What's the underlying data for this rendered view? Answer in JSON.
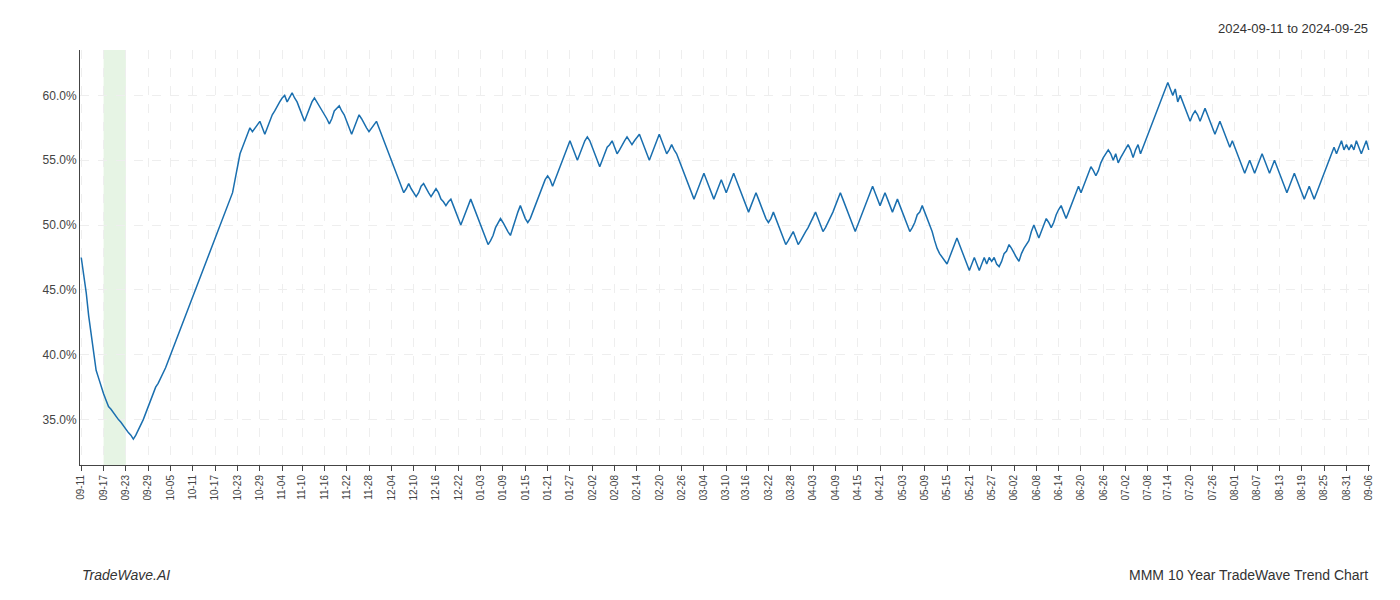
{
  "chart_data": {
    "type": "line",
    "annotations": [
      "2024-09-11 to 2024-09-25",
      "TradeWave.AI",
      "MMM 10 Year TradeWave Trend Chart"
    ],
    "color": "#1a6faf",
    "grid": true,
    "highlight": {
      "from": "09-17",
      "to": "09-23",
      "color": "#d6ecd2"
    },
    "ylim": [
      31.5,
      63.5
    ],
    "yticks": [
      {
        "value": 35.0,
        "label": "35.0%"
      },
      {
        "value": 40.0,
        "label": "40.0%"
      },
      {
        "value": 45.0,
        "label": "45.0%"
      },
      {
        "value": 50.0,
        "label": "50.0%"
      },
      {
        "value": 55.0,
        "label": "55.0%"
      },
      {
        "value": 60.0,
        "label": "60.0%"
      }
    ],
    "categories": [
      "09-11",
      null,
      null,
      null,
      null,
      null,
      null,
      null,
      null,
      "09-17",
      null,
      null,
      null,
      null,
      null,
      null,
      null,
      null,
      "09-23",
      null,
      null,
      null,
      null,
      null,
      null,
      null,
      null,
      "09-29",
      null,
      null,
      null,
      null,
      null,
      null,
      null,
      null,
      "10-05",
      null,
      null,
      null,
      null,
      null,
      null,
      null,
      null,
      "10-11",
      null,
      null,
      null,
      null,
      null,
      null,
      null,
      null,
      "10-17",
      null,
      null,
      null,
      null,
      null,
      null,
      null,
      null,
      "10-23",
      null,
      null,
      null,
      null,
      null,
      null,
      null,
      null,
      "10-29",
      null,
      null,
      null,
      null,
      null,
      null,
      null,
      null,
      "11-04",
      null,
      null,
      null,
      null,
      null,
      null,
      null,
      "11-10",
      null,
      null,
      null,
      null,
      null,
      null,
      null,
      null,
      "11-16",
      null,
      null,
      null,
      null,
      null,
      null,
      null,
      null,
      "11-22",
      null,
      null,
      null,
      null,
      null,
      null,
      null,
      null,
      "11-28",
      null,
      null,
      null,
      null,
      null,
      null,
      null,
      null,
      "12-04",
      null,
      null,
      null,
      null,
      null,
      null,
      null,
      null,
      "12-10",
      null,
      null,
      null,
      null,
      null,
      null,
      null,
      null,
      "12-16",
      null,
      null,
      null,
      null,
      null,
      null,
      null,
      null,
      "12-22",
      null,
      null,
      null,
      null,
      null,
      null,
      null,
      null,
      "01-03",
      null,
      null,
      null,
      null,
      null,
      null,
      null,
      null,
      "01-09",
      null,
      null,
      null,
      null,
      null,
      null,
      null,
      null,
      "01-15",
      null,
      null,
      null,
      null,
      null,
      null,
      null,
      null,
      "01-21",
      null,
      null,
      null,
      null,
      null,
      null,
      null,
      null,
      "01-27",
      null,
      null,
      null,
      null,
      null,
      null,
      null,
      null,
      "02-02",
      null,
      null,
      null,
      null,
      null,
      null,
      null,
      null,
      "02-08",
      null,
      null,
      null,
      null,
      null,
      null,
      null,
      null,
      "02-14",
      null,
      null,
      null,
      null,
      null,
      null,
      null,
      null,
      "02-20",
      null,
      null,
      null,
      null,
      null,
      null,
      null,
      null,
      "02-26",
      null,
      null,
      null,
      null,
      null,
      null,
      null,
      null,
      "03-04",
      null,
      null,
      null,
      null,
      null,
      null,
      null,
      null,
      "03-10",
      null,
      null,
      null,
      null,
      null,
      null,
      null,
      "03-16",
      null,
      null,
      null,
      null,
      null,
      null,
      null,
      null,
      "03-22",
      null,
      null,
      null,
      null,
      null,
      null,
      null,
      null,
      "03-28",
      null,
      null,
      null,
      null,
      null,
      null,
      null,
      null,
      "04-03",
      null,
      null,
      null,
      null,
      null,
      null,
      null,
      null,
      "04-09",
      null,
      null,
      null,
      null,
      null,
      null,
      null,
      null,
      "04-15",
      null,
      null,
      null,
      null,
      null,
      null,
      null,
      null,
      "04-21",
      null,
      null,
      null,
      null,
      null,
      null,
      null,
      null,
      "05-03",
      null,
      null,
      null,
      null,
      null,
      null,
      null,
      null,
      "05-09",
      null,
      null,
      null,
      null,
      null,
      null,
      null,
      null,
      "05-15",
      null,
      null,
      null,
      null,
      null,
      null,
      null,
      null,
      "05-21",
      null,
      null,
      null,
      null,
      null,
      null,
      null,
      null,
      "05-27",
      null,
      null,
      null,
      null,
      null,
      null,
      null,
      null,
      "06-02",
      null,
      null,
      null,
      null,
      null,
      null,
      null,
      null,
      "06-08",
      null,
      null,
      null,
      null,
      null,
      null,
      null,
      null,
      "06-14",
      null,
      null,
      null,
      null,
      null,
      null,
      null,
      null,
      "06-20",
      null,
      null,
      null,
      null,
      null,
      null,
      null,
      null,
      "06-26",
      null,
      null,
      null,
      null,
      null,
      null,
      null,
      null,
      "07-02",
      null,
      null,
      null,
      null,
      null,
      null,
      null,
      null,
      "07-08",
      null,
      null,
      null,
      null,
      null,
      null,
      null,
      "07-14",
      null,
      null,
      null,
      null,
      null,
      null,
      null,
      null,
      "07-20",
      null,
      null,
      null,
      null,
      null,
      null,
      null,
      null,
      "07-26",
      null,
      null,
      null,
      null,
      null,
      null,
      null,
      null,
      "08-01",
      null,
      null,
      null,
      null,
      null,
      null,
      null,
      null,
      "08-07",
      null,
      null,
      null,
      null,
      null,
      null,
      null,
      null,
      "08-13",
      null,
      null,
      null,
      null,
      null,
      null,
      null,
      null,
      "08-19",
      null,
      null,
      null,
      null,
      null,
      null,
      null,
      null,
      "08-25",
      null,
      null,
      null,
      null,
      null,
      null,
      null,
      null,
      "08-31",
      null,
      null,
      null,
      null,
      null,
      null,
      null,
      null,
      "09-06"
    ],
    "values": [
      47.5,
      46.2,
      44.8,
      43.0,
      41.5,
      40.0,
      38.8,
      38.2,
      37.5,
      37.0,
      36.5,
      36.0,
      35.8,
      35.5,
      35.2,
      35.0,
      34.8,
      34.5,
      34.2,
      34.0,
      33.8,
      33.5,
      33.8,
      34.2,
      34.5,
      35.0,
      35.5,
      36.0,
      36.5,
      37.0,
      37.5,
      37.8,
      38.2,
      38.5,
      39.0,
      39.5,
      40.0,
      40.5,
      41.0,
      41.5,
      42.0,
      42.5,
      43.0,
      43.5,
      44.0,
      44.5,
      45.0,
      45.5,
      46.0,
      46.5,
      47.0,
      47.5,
      48.0,
      48.5,
      49.0,
      49.5,
      50.0,
      50.5,
      51.0,
      51.5,
      52.0,
      52.5,
      53.5,
      54.5,
      55.5,
      56.0,
      56.5,
      57.0,
      57.5,
      57.2,
      57.5,
      57.8,
      58.0,
      57.5,
      57.0,
      57.5,
      58.0,
      58.5,
      58.8,
      59.2,
      59.5,
      59.8,
      60.0,
      59.5,
      59.8,
      60.2,
      59.8,
      59.5,
      59.0,
      58.5,
      58.0,
      58.5,
      59.0,
      59.5,
      59.8,
      59.5,
      59.2,
      58.8,
      58.5,
      58.2,
      57.8,
      58.2,
      58.8,
      59.0,
      59.2,
      58.8,
      58.5,
      58.0,
      57.5,
      57.0,
      57.5,
      58.0,
      58.5,
      58.2,
      57.8,
      57.5,
      57.2,
      57.5,
      57.8,
      58.0,
      57.5,
      57.0,
      56.5,
      56.0,
      55.5,
      55.0,
      54.5,
      54.0,
      53.5,
      53.0,
      52.5,
      52.8,
      53.2,
      52.8,
      52.5,
      52.2,
      52.5,
      53.0,
      53.2,
      52.8,
      52.5,
      52.2,
      52.5,
      52.8,
      52.5,
      52.0,
      51.8,
      51.5,
      51.8,
      52.0,
      51.5,
      51.0,
      50.5,
      50.0,
      50.5,
      51.0,
      51.5,
      52.0,
      51.5,
      51.0,
      50.5,
      50.0,
      49.5,
      49.0,
      48.5,
      48.8,
      49.2,
      49.8,
      50.2,
      50.5,
      50.2,
      49.8,
      49.5,
      49.2,
      49.8,
      50.5,
      51.0,
      51.5,
      51.0,
      50.5,
      50.2,
      50.5,
      51.0,
      51.5,
      52.0,
      52.5,
      53.0,
      53.5,
      53.8,
      53.5,
      53.0,
      53.5,
      54.0,
      54.5,
      55.0,
      55.5,
      56.0,
      56.5,
      56.0,
      55.5,
      55.0,
      55.5,
      56.0,
      56.5,
      56.8,
      56.5,
      56.0,
      55.5,
      55.0,
      54.5,
      55.0,
      55.5,
      56.0,
      56.2,
      56.5,
      56.0,
      55.5,
      55.8,
      56.2,
      56.5,
      56.8,
      56.5,
      56.2,
      56.5,
      56.8,
      57.0,
      56.5,
      56.0,
      55.5,
      55.0,
      55.5,
      56.0,
      56.5,
      57.0,
      56.5,
      56.0,
      55.5,
      55.8,
      56.2,
      55.8,
      55.5,
      55.0,
      54.5,
      54.0,
      53.5,
      53.0,
      52.5,
      52.0,
      52.5,
      53.0,
      53.5,
      54.0,
      53.5,
      53.0,
      52.5,
      52.0,
      52.5,
      53.0,
      53.5,
      53.0,
      52.5,
      53.0,
      53.5,
      54.0,
      53.5,
      53.0,
      52.5,
      52.0,
      51.5,
      51.0,
      51.5,
      52.0,
      52.5,
      52.0,
      51.5,
      51.0,
      50.5,
      50.2,
      50.5,
      51.0,
      50.5,
      50.0,
      49.5,
      49.0,
      48.5,
      48.8,
      49.2,
      49.5,
      49.0,
      48.5,
      48.8,
      49.2,
      49.5,
      49.8,
      50.2,
      50.5,
      51.0,
      50.5,
      50.0,
      49.5,
      49.8,
      50.2,
      50.5,
      51.0,
      51.5,
      52.0,
      52.5,
      52.0,
      51.5,
      51.0,
      50.5,
      50.0,
      49.5,
      50.0,
      50.5,
      51.0,
      51.5,
      52.0,
      52.5,
      53.0,
      52.5,
      52.0,
      51.5,
      52.0,
      52.5,
      52.0,
      51.5,
      51.0,
      51.5,
      52.0,
      51.5,
      51.0,
      50.5,
      50.0,
      49.5,
      49.8,
      50.2,
      50.8,
      51.0,
      51.5,
      51.0,
      50.5,
      50.0,
      49.5,
      48.8,
      48.2,
      47.8,
      47.5,
      47.2,
      47.0,
      47.5,
      48.0,
      48.5,
      49.0,
      48.5,
      48.0,
      47.5,
      47.0,
      46.5,
      47.0,
      47.5,
      47.0,
      46.5,
      47.0,
      47.5,
      47.0,
      47.5,
      47.2,
      47.5,
      47.0,
      46.8,
      47.2,
      47.8,
      48.0,
      48.5,
      48.2,
      47.8,
      47.5,
      47.2,
      47.8,
      48.2,
      48.5,
      48.8,
      49.5,
      50.0,
      49.5,
      49.0,
      49.5,
      50.0,
      50.5,
      50.2,
      49.8,
      50.2,
      50.8,
      51.2,
      51.5,
      51.0,
      50.5,
      51.0,
      51.5,
      52.0,
      52.5,
      53.0,
      52.5,
      53.0,
      53.5,
      54.0,
      54.5,
      54.2,
      53.8,
      54.2,
      54.8,
      55.2,
      55.5,
      55.8,
      55.5,
      55.0,
      55.5,
      54.8,
      55.2,
      55.5,
      55.8,
      56.2,
      55.8,
      55.2,
      55.8,
      56.2,
      55.5,
      56.0,
      56.5,
      57.0,
      57.5,
      58.0,
      58.5,
      59.0,
      59.5,
      60.0,
      60.5,
      61.0,
      60.5,
      60.0,
      60.5,
      59.5,
      60.0,
      59.5,
      59.0,
      58.5,
      58.0,
      58.5,
      58.8,
      58.5,
      58.0,
      58.5,
      59.0,
      58.5,
      58.0,
      57.5,
      57.0,
      57.5,
      58.0,
      57.5,
      57.0,
      56.5,
      56.0,
      56.5,
      56.0,
      55.5,
      55.0,
      54.5,
      54.0,
      54.5,
      55.0,
      54.5,
      54.0,
      54.5,
      55.0,
      55.5,
      55.0,
      54.5,
      54.0,
      54.5,
      55.0,
      54.5,
      54.0,
      53.5,
      53.0,
      52.5,
      53.0,
      53.5,
      54.0,
      53.5,
      53.0,
      52.5,
      52.0,
      52.5,
      53.0,
      52.5,
      52.0,
      52.5,
      53.0,
      53.5,
      54.0,
      54.5,
      55.0,
      55.5,
      56.0,
      55.5,
      56.0,
      56.5,
      55.8,
      56.2,
      55.8,
      56.2,
      55.8,
      56.5,
      56.0,
      55.5,
      56.0,
      56.5,
      55.8
    ]
  }
}
